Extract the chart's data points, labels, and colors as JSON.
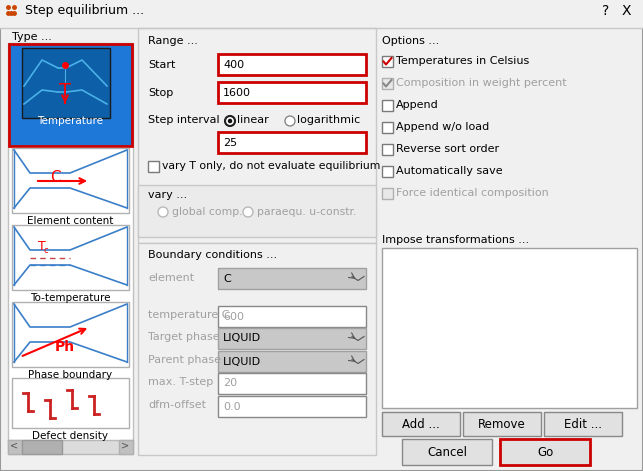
{
  "title": "Step equilibrium ...",
  "bg_color": "#f0f0f0",
  "blue_selected_bg": "#1e78d7",
  "red_sel_border": "#cc0000",
  "section_labels": {
    "type": "Type ...",
    "range": "Range ...",
    "options": "Options ...",
    "vary": "vary ...",
    "boundary": "Boundary conditions ...",
    "impose": "Impose transformations ..."
  },
  "options_checkboxes": [
    {
      "label": "Temperatures in Celsius",
      "checked": true,
      "enabled": true,
      "red_check": true
    },
    {
      "label": "Composition in weight percent",
      "checked": true,
      "enabled": false,
      "red_check": false
    },
    {
      "label": "Append",
      "checked": false,
      "enabled": true,
      "red_check": false
    },
    {
      "label": "Append w/o load",
      "checked": false,
      "enabled": true,
      "red_check": false
    },
    {
      "label": "Reverse sort order",
      "checked": false,
      "enabled": true,
      "red_check": false
    },
    {
      "label": "Automatically save",
      "checked": false,
      "enabled": true,
      "red_check": false
    },
    {
      "label": "Force identical composition",
      "checked": false,
      "enabled": false,
      "red_check": false
    }
  ],
  "impose_buttons": [
    "Add ...",
    "Remove",
    "Edit ..."
  ],
  "red_border": "#cc0000",
  "disabled_text": "#a0a0a0",
  "enabled_text": "#000000",
  "button_bg": "#e1e1e1",
  "input_bg": "#ffffff",
  "panel_bg": "#e8e8e8",
  "disabled_input_bg": "#f0f0f0",
  "dropdown_bg": "#c8c8c8",
  "checkbox_border": "#7a7a7a"
}
